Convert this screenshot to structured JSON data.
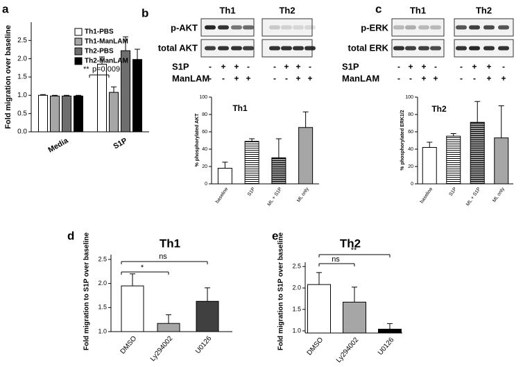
{
  "chart_data": [
    {
      "type": "bar",
      "panel": "a",
      "ylabel": "Fold migration over baseline",
      "categories": [
        "Media",
        "S1P"
      ],
      "series": [
        {
          "name": "Th1-PBS",
          "color": "#ffffff",
          "values": [
            1.0,
            1.85
          ],
          "errors": [
            0.02,
            0.2
          ]
        },
        {
          "name": "Th1-ManLAM",
          "color": "#a6a6a6",
          "values": [
            0.98,
            1.08
          ],
          "errors": [
            0.02,
            0.15
          ]
        },
        {
          "name": "Th2-PBS",
          "color": "#6e6e6e",
          "values": [
            0.98,
            2.22
          ],
          "errors": [
            0.02,
            0.38
          ]
        },
        {
          "name": "Th2-ManLAM",
          "color": "#000000",
          "values": [
            0.98,
            1.98
          ],
          "errors": [
            0.02,
            0.28
          ]
        }
      ],
      "ylim": [
        0,
        3
      ],
      "yticks": [
        {
          "value": 0,
          "label": "0.0"
        },
        0.5,
        {
          "value": 1,
          "label": "1.0"
        },
        1.5,
        {
          "value": 2,
          "label": "2.0"
        },
        2.5
      ],
      "legend": "top-right",
      "annotations": [
        "**",
        "p=0.009"
      ]
    },
    {
      "type": "bar",
      "panel": "b",
      "title": "Th1",
      "ylabel": "% phosphorylated AKT",
      "categories": [
        "baseline",
        "S1P",
        "ML + S1P",
        "ML only"
      ],
      "values": [
        18,
        49,
        30,
        65
      ],
      "errors": [
        7,
        3,
        22,
        18
      ],
      "colors": [
        "#ffffff",
        "#ffffff",
        "#9a9a9a",
        "#a6a6a6"
      ],
      "patterns": [
        "none",
        "stripes",
        "stripes",
        "none"
      ],
      "ylim": [
        0,
        100
      ],
      "yticks": [
        0,
        20,
        40,
        60,
        80,
        100
      ],
      "blot": {
        "groups": [
          "Th1",
          "Th2"
        ],
        "rows": [
          "p-AKT",
          "total AKT"
        ],
        "treatments": [
          {
            "name": "S1P",
            "signs": [
              "-",
              "+",
              "+",
              "-",
              "-",
              "+",
              "+",
              "-"
            ]
          },
          {
            "name": "ManLAM",
            "signs": [
              "-",
              "-",
              "+",
              "+",
              "-",
              "-",
              "+",
              "+"
            ]
          }
        ]
      }
    },
    {
      "type": "bar",
      "panel": "c",
      "title": "Th2",
      "ylabel": "% phosphorylated ERK1/2",
      "categories": [
        "baseline",
        "S1P",
        "ML + S1P",
        "ML only"
      ],
      "values": [
        42,
        55,
        71,
        53
      ],
      "errors": [
        6,
        3,
        24,
        37
      ],
      "colors": [
        "#ffffff",
        "#ffffff",
        "#9a9a9a",
        "#a6a6a6"
      ],
      "patterns": [
        "none",
        "stripes",
        "stripes",
        "none"
      ],
      "ylim": [
        0,
        100
      ],
      "yticks": [
        0,
        20,
        40,
        60,
        80,
        100
      ],
      "blot": {
        "groups": [
          "Th1",
          "Th2"
        ],
        "rows": [
          "p-ERK",
          "total ERK"
        ],
        "treatments": [
          {
            "name": "S1P",
            "signs": [
              "-",
              "+",
              "+",
              "-",
              "-",
              "+",
              "+",
              "-"
            ]
          },
          {
            "name": "ManLAM",
            "signs": [
              "-",
              "-",
              "+",
              "+",
              "-",
              "-",
              "+",
              "+"
            ]
          }
        ]
      }
    },
    {
      "type": "bar",
      "panel": "d",
      "title": "Th1",
      "ylabel": "Fold migration to S1P over baseline",
      "categories": [
        "DMSO",
        "Ly294002",
        "U0126"
      ],
      "values": [
        1.95,
        1.17,
        1.63
      ],
      "errors": [
        0.25,
        0.18,
        0.28
      ],
      "colors": [
        "#ffffff",
        "#a6a6a6",
        "#404040"
      ],
      "ylim": [
        1.0,
        2.6
      ],
      "yticks": [
        {
          "value": 1,
          "label": "1.0"
        },
        1.5,
        {
          "value": 2,
          "label": "2.0"
        },
        2.5
      ],
      "annotations": [
        "*",
        "ns"
      ]
    },
    {
      "type": "bar",
      "panel": "e",
      "title": "Th2",
      "ylabel": "Fold migration to S1P over baseline",
      "categories": [
        "DMSO",
        "Ly294002",
        "U0126"
      ],
      "values": [
        2.08,
        1.67,
        1.04
      ],
      "errors": [
        0.28,
        0.35,
        0.13
      ],
      "colors": [
        "#ffffff",
        "#a6a6a6",
        "#000000"
      ],
      "ylim": [
        0.95,
        2.6
      ],
      "yticks": [
        {
          "value": 1,
          "label": "1.0"
        },
        1.5,
        {
          "value": 2,
          "label": "2.0"
        },
        2.5
      ],
      "annotations": [
        "ns",
        "**"
      ]
    }
  ]
}
